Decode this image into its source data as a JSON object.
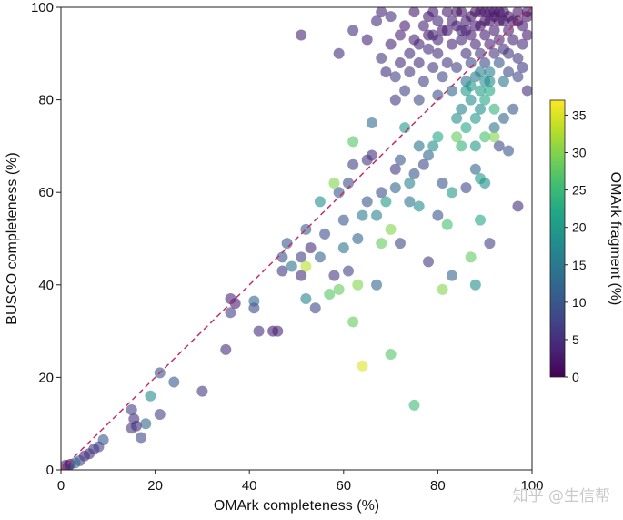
{
  "chart_data": {
    "type": "scatter",
    "title": "",
    "xlabel": "OMArk completeness (%)",
    "ylabel": "BUSCO completeness (%)",
    "xlim": [
      0,
      100
    ],
    "ylim": [
      0,
      100
    ],
    "xticks": [
      0,
      20,
      40,
      60,
      80,
      100
    ],
    "yticks": [
      0,
      20,
      40,
      60,
      80,
      100
    ],
    "reference_line": {
      "label": "y = x",
      "color": "#c0306a",
      "style": "dashed"
    },
    "colorbar": {
      "label": "OMArk fragment (%)",
      "range": [
        0,
        37
      ],
      "ticks": [
        0,
        5,
        10,
        15,
        20,
        25,
        30,
        35
      ],
      "colormap": "viridis"
    },
    "point_alpha": 0.6,
    "points": [
      [
        1,
        1,
        3
      ],
      [
        1.5,
        0.8,
        4
      ],
      [
        2,
        1.2,
        2
      ],
      [
        3,
        1.5,
        12
      ],
      [
        4,
        2,
        8
      ],
      [
        5,
        3,
        4
      ],
      [
        6,
        3.5,
        5
      ],
      [
        7,
        4.5,
        6
      ],
      [
        8,
        5,
        7
      ],
      [
        9,
        6.5,
        10
      ],
      [
        15,
        13,
        7
      ],
      [
        15.5,
        11,
        5
      ],
      [
        16,
        9.5,
        4
      ],
      [
        15,
        9,
        6
      ],
      [
        17,
        7,
        8
      ],
      [
        18,
        10,
        12
      ],
      [
        19,
        16,
        18
      ],
      [
        21,
        21,
        9
      ],
      [
        21,
        12,
        7
      ],
      [
        24,
        19,
        10
      ],
      [
        30,
        17,
        6
      ],
      [
        35,
        26,
        5
      ],
      [
        36,
        34,
        7
      ],
      [
        36,
        37,
        4
      ],
      [
        37,
        36,
        3
      ],
      [
        41,
        35,
        8
      ],
      [
        41,
        36.5,
        12
      ],
      [
        42,
        30,
        5
      ],
      [
        45,
        30,
        3
      ],
      [
        46,
        30,
        4
      ],
      [
        47,
        43,
        6
      ],
      [
        47,
        46,
        9
      ],
      [
        48,
        49,
        10
      ],
      [
        49,
        44,
        14
      ],
      [
        51,
        42,
        5
      ],
      [
        51,
        46,
        7
      ],
      [
        52,
        44,
        33
      ],
      [
        52,
        37,
        16
      ],
      [
        52,
        52,
        11
      ],
      [
        53,
        48,
        5
      ],
      [
        54,
        35,
        8
      ],
      [
        55,
        58,
        18
      ],
      [
        55,
        46,
        12
      ],
      [
        56,
        51,
        9
      ],
      [
        57,
        38,
        27
      ],
      [
        58,
        62,
        30
      ],
      [
        58,
        42,
        6
      ],
      [
        59,
        39,
        28
      ],
      [
        59,
        60,
        10
      ],
      [
        60,
        48,
        14
      ],
      [
        60,
        54,
        10
      ],
      [
        61,
        62,
        9
      ],
      [
        61,
        43,
        7
      ],
      [
        62,
        71,
        27
      ],
      [
        62,
        32,
        28
      ],
      [
        62,
        66,
        7
      ],
      [
        63,
        40,
        30
      ],
      [
        63,
        50,
        12
      ],
      [
        64,
        22.5,
        35
      ],
      [
        64,
        55,
        15
      ],
      [
        65,
        67,
        6
      ],
      [
        65,
        58,
        10
      ],
      [
        66,
        68,
        5
      ],
      [
        66,
        75,
        13
      ],
      [
        67,
        55,
        16
      ],
      [
        67,
        40,
        12
      ],
      [
        68,
        49,
        28
      ],
      [
        68,
        60,
        9
      ],
      [
        69,
        58,
        20
      ],
      [
        70,
        52,
        30
      ],
      [
        70,
        25,
        27
      ],
      [
        71,
        61,
        12
      ],
      [
        71,
        65,
        6
      ],
      [
        72,
        67,
        10
      ],
      [
        72,
        49,
        8
      ],
      [
        73,
        74,
        20
      ],
      [
        74,
        62,
        16
      ],
      [
        74,
        58,
        14
      ],
      [
        75,
        14,
        25
      ],
      [
        75,
        64,
        10
      ],
      [
        76,
        70,
        14
      ],
      [
        76,
        57,
        18
      ],
      [
        77,
        66,
        8
      ],
      [
        78,
        45,
        6
      ],
      [
        78,
        68,
        12
      ],
      [
        79,
        70,
        18
      ],
      [
        80,
        55,
        10
      ],
      [
        80,
        72,
        22
      ],
      [
        81,
        39,
        30
      ],
      [
        81,
        62,
        10
      ],
      [
        82,
        53,
        26
      ],
      [
        83,
        42,
        12
      ],
      [
        83,
        60,
        20
      ],
      [
        84,
        72,
        28
      ],
      [
        85,
        70,
        24
      ],
      [
        86,
        61,
        8
      ],
      [
        87,
        46,
        28
      ],
      [
        88,
        40,
        18
      ],
      [
        88,
        65,
        12
      ],
      [
        89,
        63,
        20
      ],
      [
        89,
        54,
        22
      ],
      [
        90,
        62,
        18
      ],
      [
        91,
        49,
        7
      ],
      [
        92,
        72,
        30
      ],
      [
        93,
        70,
        8
      ],
      [
        95,
        69,
        10
      ],
      [
        97,
        57,
        5
      ],
      [
        51,
        94,
        4
      ],
      [
        59,
        90,
        5
      ],
      [
        62,
        95,
        5
      ],
      [
        65,
        93,
        4
      ],
      [
        67,
        97,
        5
      ],
      [
        68,
        89,
        6
      ],
      [
        68,
        99,
        4
      ],
      [
        69,
        86,
        5
      ],
      [
        70,
        92,
        4
      ],
      [
        70,
        98,
        5
      ],
      [
        71,
        80,
        6
      ],
      [
        71,
        85,
        7
      ],
      [
        72,
        88,
        5
      ],
      [
        72,
        94,
        4
      ],
      [
        73,
        96,
        3
      ],
      [
        73,
        82,
        7
      ],
      [
        74,
        90,
        5
      ],
      [
        74,
        86,
        6
      ],
      [
        75,
        99,
        3
      ],
      [
        75,
        93,
        4
      ],
      [
        76,
        88,
        5
      ],
      [
        76,
        80,
        8
      ],
      [
        77,
        96,
        4
      ],
      [
        77,
        84,
        7
      ],
      [
        78,
        91,
        5
      ],
      [
        78,
        98,
        3
      ],
      [
        79,
        87,
        6
      ],
      [
        79,
        94,
        4
      ],
      [
        80,
        81,
        9
      ],
      [
        80,
        97,
        4
      ],
      [
        80,
        90,
        5
      ],
      [
        81,
        85,
        8
      ],
      [
        81,
        95,
        3
      ],
      [
        82,
        88,
        6
      ],
      [
        82,
        99,
        3
      ],
      [
        83,
        92,
        4
      ],
      [
        83,
        82,
        12
      ],
      [
        84,
        96,
        3
      ],
      [
        84,
        87,
        7
      ],
      [
        85,
        93,
        4
      ],
      [
        85,
        99,
        2
      ],
      [
        85,
        78,
        16
      ],
      [
        86,
        90,
        5
      ],
      [
        86,
        95,
        3
      ],
      [
        86,
        84,
        14
      ],
      [
        87,
        98,
        2
      ],
      [
        87,
        88,
        8
      ],
      [
        87,
        80,
        18
      ],
      [
        88,
        92,
        4
      ],
      [
        88,
        96,
        3
      ],
      [
        88,
        85,
        15
      ],
      [
        88,
        76,
        20
      ],
      [
        89,
        99,
        2
      ],
      [
        89,
        90,
        6
      ],
      [
        89,
        82,
        20
      ],
      [
        89,
        78,
        18
      ],
      [
        90,
        94,
        3
      ],
      [
        90,
        97,
        2
      ],
      [
        90,
        88,
        8
      ],
      [
        90,
        84,
        18
      ],
      [
        90,
        80,
        22
      ],
      [
        91,
        92,
        4
      ],
      [
        91,
        99,
        3
      ],
      [
        91,
        86,
        16
      ],
      [
        91,
        82,
        22
      ],
      [
        92,
        95,
        3
      ],
      [
        92,
        90,
        6
      ],
      [
        92,
        98,
        2
      ],
      [
        92,
        78,
        24
      ],
      [
        93,
        93,
        4
      ],
      [
        93,
        97,
        2
      ],
      [
        93,
        88,
        10
      ],
      [
        94,
        91,
        5
      ],
      [
        94,
        99,
        2
      ],
      [
        94,
        84,
        14
      ],
      [
        95,
        95,
        3
      ],
      [
        95,
        90,
        6
      ],
      [
        95,
        86,
        8
      ],
      [
        96,
        97,
        2
      ],
      [
        96,
        93,
        4
      ],
      [
        97,
        99,
        2
      ],
      [
        97,
        89,
        6
      ],
      [
        97,
        85,
        8
      ],
      [
        98,
        96,
        3
      ],
      [
        98,
        92,
        5
      ],
      [
        98,
        87,
        6
      ],
      [
        99,
        99,
        2
      ],
      [
        99,
        94,
        3
      ],
      [
        99,
        82,
        5
      ],
      [
        96,
        78,
        10
      ],
      [
        94,
        76,
        12
      ],
      [
        92,
        74,
        14
      ],
      [
        90,
        72,
        26
      ],
      [
        88,
        70,
        20
      ],
      [
        86,
        74,
        22
      ],
      [
        84,
        76,
        18
      ],
      [
        87,
        83,
        20
      ],
      [
        89,
        86,
        16
      ],
      [
        91,
        84,
        17
      ],
      [
        86,
        82,
        19
      ],
      [
        79,
        99,
        3
      ],
      [
        83,
        97,
        4
      ],
      [
        85,
        95,
        4
      ],
      [
        87,
        94,
        3
      ],
      [
        89,
        96,
        2
      ],
      [
        91,
        97,
        2
      ],
      [
        93,
        99,
        2
      ],
      [
        95,
        98,
        2
      ],
      [
        97,
        97,
        2
      ],
      [
        99,
        98,
        2
      ],
      [
        76,
        92,
        4
      ],
      [
        78,
        94,
        3
      ],
      [
        80,
        93,
        4
      ],
      [
        82,
        95,
        3
      ],
      [
        84,
        99,
        2
      ],
      [
        86,
        97,
        3
      ],
      [
        88,
        99,
        2
      ],
      [
        90,
        99,
        2
      ],
      [
        92,
        99,
        1
      ],
      [
        94,
        97,
        2
      ]
    ]
  }
}
